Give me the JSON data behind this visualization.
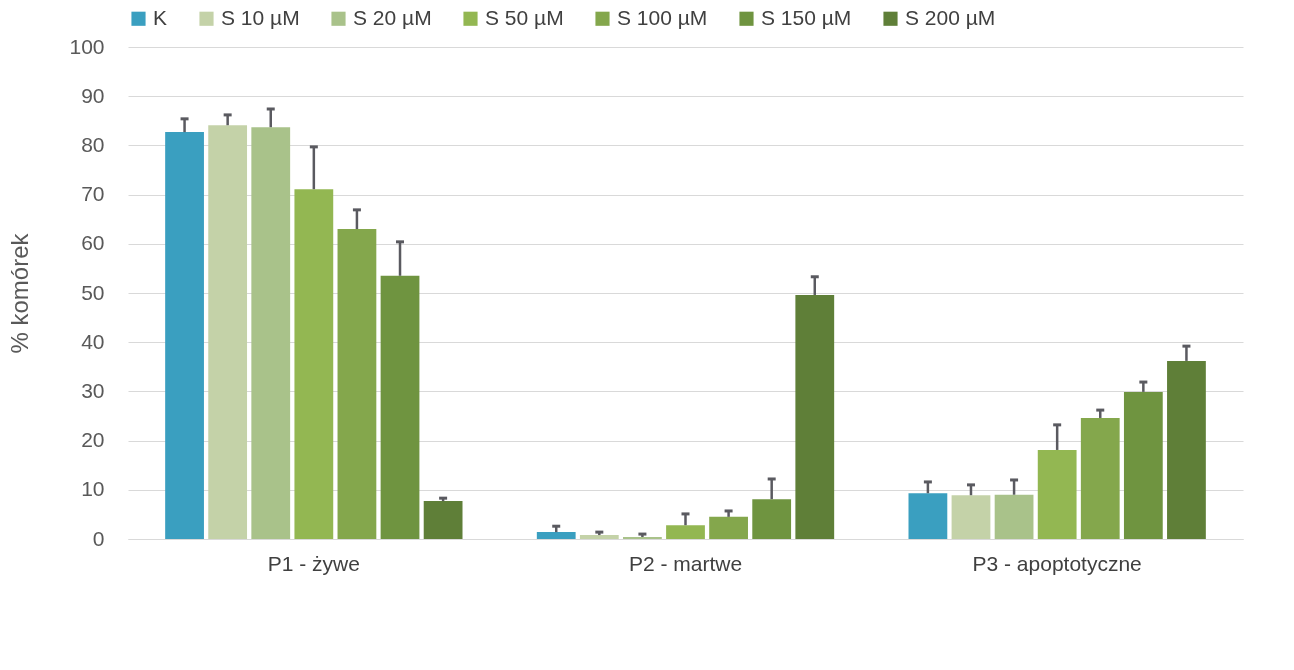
{
  "chart_data": {
    "type": "bar",
    "ylabel": "% komórek",
    "categories": [
      "P1 - żywe",
      "P2 - martwe",
      "P3 - apoptotyczne"
    ],
    "ylim": [
      0,
      100
    ],
    "yticks": [
      0,
      10,
      20,
      30,
      40,
      50,
      60,
      70,
      80,
      90,
      100
    ],
    "grid": "y",
    "legend": "top",
    "series": [
      {
        "name": "K",
        "color": "#3a9fc0",
        "values": [
          82.7,
          1.4,
          9.3
        ],
        "errors": [
          [
            82.7,
            85.4
          ],
          [
            1.4,
            2.6
          ],
          [
            9.3,
            11.6
          ]
        ]
      },
      {
        "name": "S 10 µM",
        "color": "#c4d2a8",
        "values": [
          84.1,
          0.8,
          8.9
        ],
        "errors": [
          [
            84.1,
            86.2
          ],
          [
            0.8,
            1.4
          ],
          [
            8.9,
            11.0
          ]
        ]
      },
      {
        "name": "S 20 µM",
        "color": "#a9c28a",
        "values": [
          83.7,
          0.4,
          9.0
        ],
        "errors": [
          [
            83.7,
            87.4
          ],
          [
            0.4,
            1.0
          ],
          [
            9.0,
            12.0
          ]
        ]
      },
      {
        "name": "S 50 µM",
        "color": "#93b752",
        "values": [
          71.1,
          2.8,
          18.1
        ],
        "errors": [
          [
            71.1,
            79.7
          ],
          [
            2.8,
            5.1
          ],
          [
            18.1,
            23.2
          ]
        ]
      },
      {
        "name": "S 100 µM",
        "color": "#84a74c",
        "values": [
          63.0,
          4.5,
          24.6
        ],
        "errors": [
          [
            63.0,
            66.9
          ],
          [
            4.5,
            5.7
          ],
          [
            24.6,
            26.2
          ]
        ]
      },
      {
        "name": "S 150 µM",
        "color": "#6f9440",
        "values": [
          53.5,
          8.1,
          29.9
        ],
        "errors": [
          [
            53.5,
            60.4
          ],
          [
            8.1,
            12.2
          ],
          [
            29.9,
            31.9
          ]
        ]
      },
      {
        "name": "S 200 µM",
        "color": "#5f7f38",
        "values": [
          7.7,
          49.6,
          36.2
        ],
        "errors": [
          [
            7.7,
            8.3
          ],
          [
            49.6,
            53.3
          ],
          [
            36.2,
            39.2
          ]
        ]
      }
    ]
  }
}
